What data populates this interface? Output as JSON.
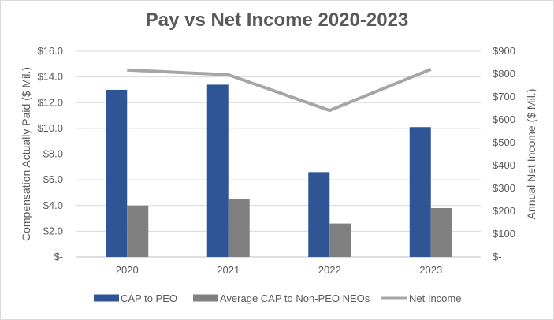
{
  "chart_data": {
    "type": "bar",
    "title": "Pay vs Net Income 2020-2023",
    "categories": [
      "2020",
      "2021",
      "2022",
      "2023"
    ],
    "series": [
      {
        "name": "CAP to PEO",
        "type": "bar",
        "axis": "left",
        "color": "#2f5597",
        "values": [
          13.0,
          13.4,
          6.6,
          10.1
        ]
      },
      {
        "name": "Average CAP to Non-PEO NEOs",
        "type": "bar",
        "axis": "left",
        "color": "#808080",
        "values": [
          4.0,
          4.5,
          2.6,
          3.8
        ]
      },
      {
        "name": "Net Income",
        "type": "line",
        "axis": "right",
        "color": "#a6a6a6",
        "values": [
          818,
          797,
          641,
          821
        ]
      }
    ],
    "ylabel": "Compensation Actually Paid ($ Mil.)",
    "y2label": "Annual Net Income ($ Mil.)",
    "ylim": [
      0,
      16
    ],
    "y2lim": [
      0,
      900
    ],
    "yticks": [
      "$-",
      "$2.0",
      "$4.0",
      "$6.0",
      "$8.0",
      "$10.0",
      "$12.0",
      "$14.0",
      "$16.0"
    ],
    "y2ticks": [
      "$-",
      "$100",
      "$200",
      "$300",
      "$400",
      "$500",
      "$600",
      "$700",
      "$800",
      "$900"
    ],
    "grid": true,
    "legend_position": "bottom"
  }
}
